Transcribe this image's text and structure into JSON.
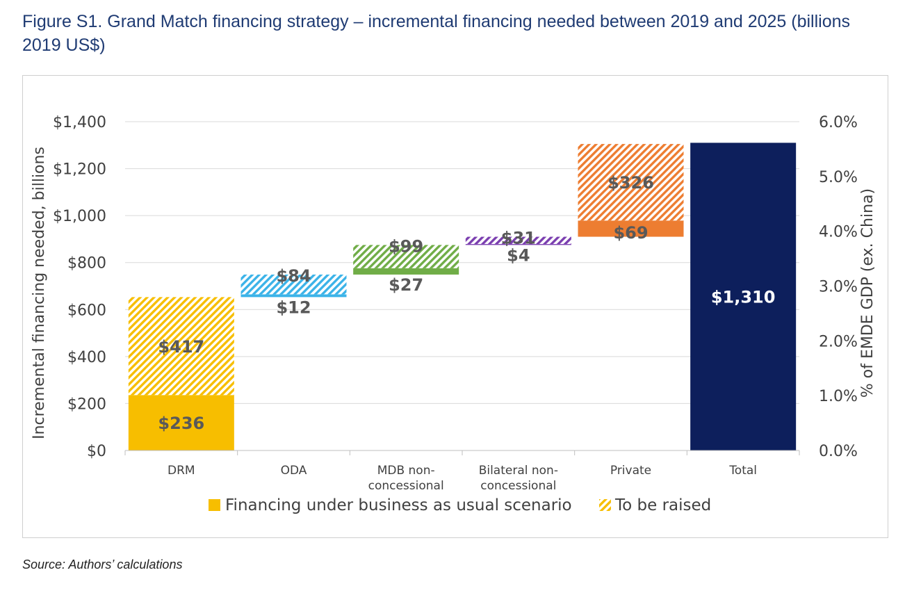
{
  "figure": {
    "title": "Figure S1. Grand Match financing strategy – incremental financing needed between 2019 and 2025 (billions 2019 US$)",
    "source": "Source: Authors’ calculations"
  },
  "chart_data": {
    "type": "bar",
    "subtype": "waterfall-stacked",
    "categories": [
      "DRM",
      "ODA",
      "MDB non-concessional",
      "Bilateral non-concessional",
      "Private",
      "Total"
    ],
    "category_lines": [
      [
        "DRM"
      ],
      [
        "ODA"
      ],
      [
        "MDB non-",
        "concessional"
      ],
      [
        "Bilateral non-",
        "concessional"
      ],
      [
        "Private"
      ],
      [
        "Total"
      ]
    ],
    "series": [
      {
        "name": "Financing under business as usual scenario",
        "values": [
          236,
          12,
          27,
          4,
          69,
          null
        ]
      },
      {
        "name": "To be raised",
        "values": [
          417,
          84,
          99,
          31,
          326,
          null
        ]
      }
    ],
    "total": {
      "category": "Total",
      "value": 1310,
      "label": "$1,310"
    },
    "bar_labels": {
      "business_as_usual": [
        "$236",
        "$12",
        "$27",
        "$4",
        "$69",
        ""
      ],
      "to_be_raised": [
        "$417",
        "$84",
        "$99",
        "$31",
        "$326",
        ""
      ]
    },
    "colors": [
      "#f7be00",
      "#3bb3e8",
      "#70ad47",
      "#7b3fb0",
      "#ed7d31",
      "#0d1f5c"
    ],
    "ylabel": "Incremental financing needed, billions",
    "y2label": "% of EMDE GDP (ex. China)",
    "ylim": [
      0,
      1400
    ],
    "yticks": [
      0,
      200,
      400,
      600,
      800,
      1000,
      1200,
      1400
    ],
    "ytick_labels": [
      "$0",
      "$200",
      "$400",
      "$600",
      "$800",
      "$1,000",
      "$1,200",
      "$1,400"
    ],
    "y2lim": [
      0,
      6
    ],
    "y2ticks": [
      0,
      1,
      2,
      3,
      4,
      5,
      6
    ],
    "y2tick_labels": [
      "0.0%",
      "1.0%",
      "2.0%",
      "3.0%",
      "4.0%",
      "5.0%",
      "6.0%"
    ],
    "grid": true,
    "legend": {
      "position": "bottom"
    }
  }
}
